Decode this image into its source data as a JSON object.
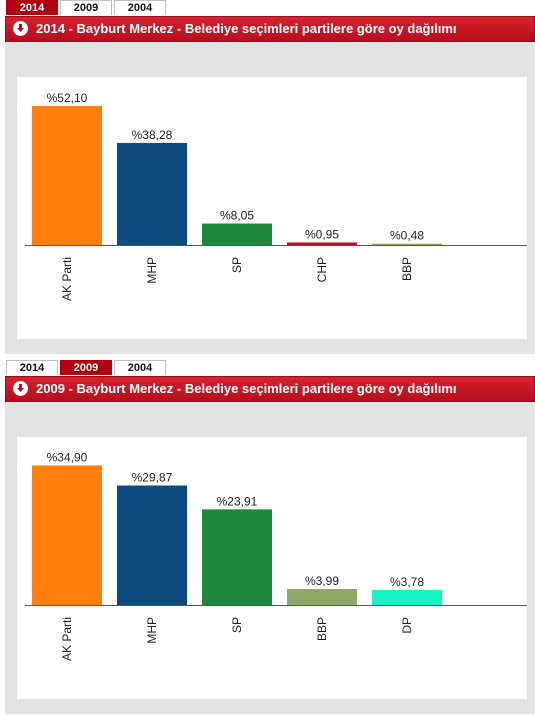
{
  "tabs": [
    "2014",
    "2009",
    "2004"
  ],
  "panels": [
    {
      "active_tab": "2014",
      "title": "2014 - Bayburt Merkez - Belediye seçimleri partilere göre oy dağılımı"
    },
    {
      "active_tab": "2009",
      "title": "2009 - Bayburt Merkez - Belediye seçimleri partilere göre oy dağılımı"
    }
  ],
  "chart_data": [
    {
      "type": "bar",
      "title": "2014 - Bayburt Merkez - Belediye seçimleri partilere göre oy dağılımı",
      "categories": [
        "AK Parti",
        "MHP",
        "SP",
        "CHP",
        "BBP"
      ],
      "values": [
        52.1,
        38.28,
        8.05,
        0.95,
        0.48
      ],
      "labels": [
        "%52,10",
        "%38,28",
        "%8,05",
        "%0,95",
        "%0,48"
      ],
      "colors": [
        "#ff7f0e",
        "#0c4a80",
        "#1d8a3a",
        "#b2131e",
        "#8aab66"
      ],
      "ylim": [
        0,
        60
      ],
      "grid": false,
      "legend": "none"
    },
    {
      "type": "bar",
      "title": "2009 - Bayburt Merkez - Belediye seçimleri partilere göre oy dağılımı",
      "categories": [
        "AK Parti",
        "MHP",
        "SP",
        "BBP",
        "DP"
      ],
      "values": [
        34.9,
        29.87,
        23.91,
        3.99,
        3.78
      ],
      "labels": [
        "%34,90",
        "%29,87",
        "%23,91",
        "%3,99",
        "%3,78"
      ],
      "colors": [
        "#ff7f0e",
        "#0c4a80",
        "#1d8a3a",
        "#8aab66",
        "#19f5c2"
      ],
      "ylim": [
        0,
        40
      ],
      "grid": false,
      "legend": "none"
    }
  ]
}
